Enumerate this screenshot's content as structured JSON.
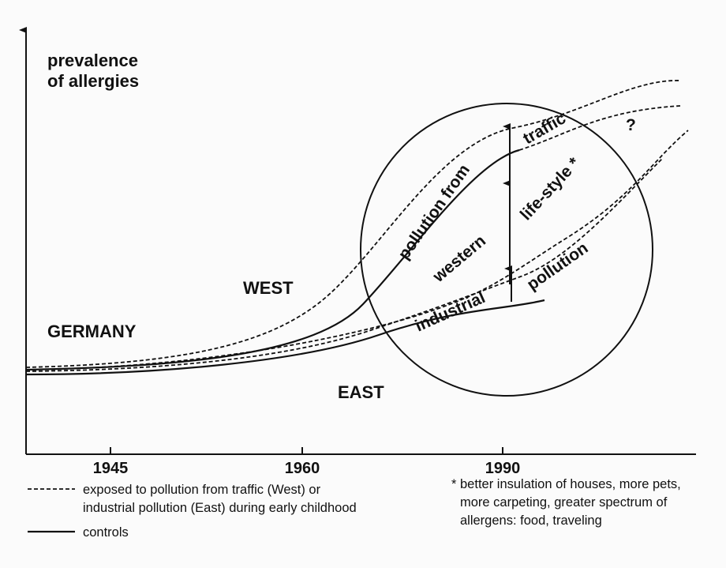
{
  "axis_label": [
    "prevalence",
    "of allergies"
  ],
  "regions": {
    "west": "WEST",
    "germany": "GERMANY",
    "east": "EAST"
  },
  "x_labels": [
    "1945",
    "1960",
    "1990"
  ],
  "circle_labels": {
    "pollution_from": "pollution from",
    "traffic": "traffic",
    "western": "western",
    "life_style": "life-style *",
    "industrial": "industrial",
    "pollution": "pollution",
    "question": "?"
  },
  "legend": {
    "exposed": [
      "exposed to pollution from traffic (West) or",
      "industrial pollution (East) during early childhood"
    ],
    "controls": "controls"
  },
  "footnote": [
    "* better insulation of houses, more pets,",
    "more carpeting, greater spectrum of",
    "allergens: food, traveling"
  ]
}
